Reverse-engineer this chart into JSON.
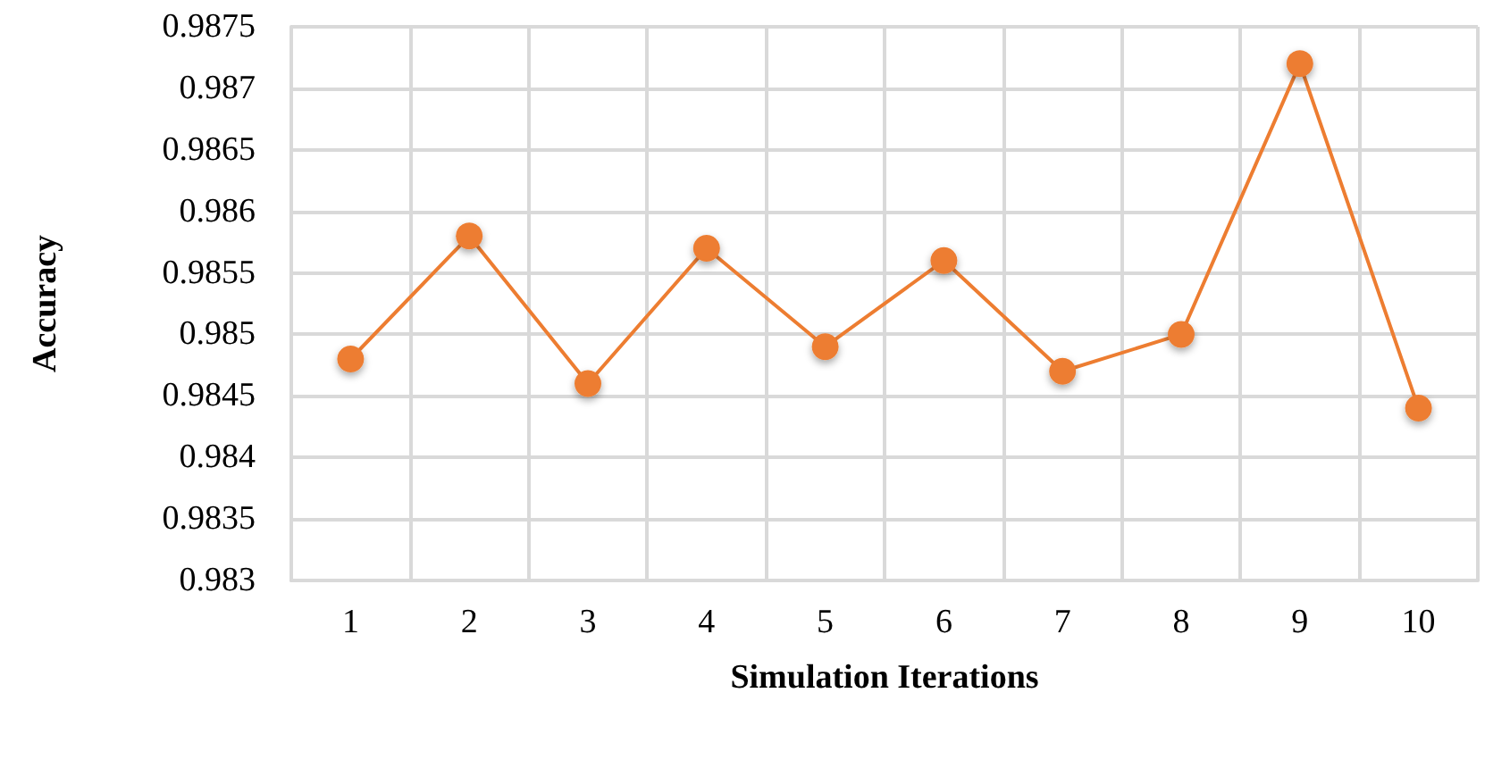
{
  "chart_data": {
    "type": "line",
    "xlabel": "Simulation Iterations",
    "ylabel": "Accuracy",
    "categories": [
      "1",
      "2",
      "3",
      "4",
      "5",
      "6",
      "7",
      "8",
      "9",
      "10"
    ],
    "series": [
      {
        "color": "#ed7d31",
        "values": [
          0.9848,
          0.9858,
          0.9846,
          0.9857,
          0.9849,
          0.9856,
          0.9847,
          0.985,
          0.9872,
          0.9844
        ]
      }
    ],
    "ylim": [
      0.983,
      0.9875
    ],
    "yticks": [
      0.983,
      0.9835,
      0.984,
      0.9845,
      0.985,
      0.9855,
      0.986,
      0.9865,
      0.987,
      0.9875
    ],
    "grid": true,
    "marker": "circle",
    "line_style": "solid"
  }
}
